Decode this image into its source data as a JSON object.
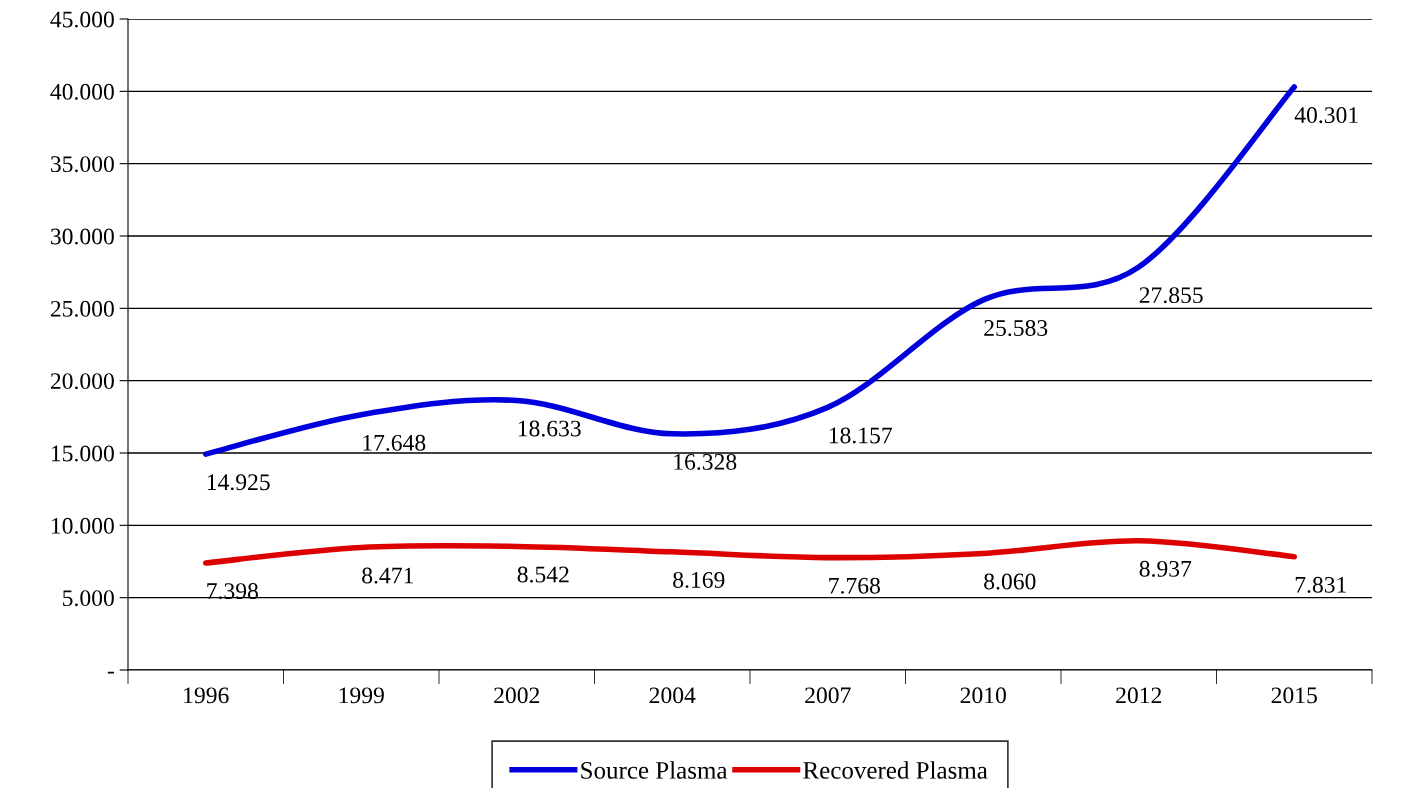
{
  "chart_data": {
    "type": "line",
    "categories": [
      "1996",
      "1999",
      "2002",
      "2004",
      "2007",
      "2010",
      "2012",
      "2015"
    ],
    "series": [
      {
        "name": "Source Plasma",
        "color": "#0000dd",
        "values": [
          14925,
          17648,
          18633,
          16328,
          18157,
          25583,
          27855,
          40301
        ],
        "value_labels": [
          "14.925",
          "17.648",
          "18.633",
          "16.328",
          "18.157",
          "25.583",
          "27.855",
          "40.301"
        ]
      },
      {
        "name": "Recovered Plasma",
        "color": "#dd0000",
        "values": [
          7398,
          8471,
          8542,
          8169,
          7768,
          8060,
          8937,
          7831
        ],
        "value_labels": [
          "7.398",
          "8.471",
          "8.542",
          "8.169",
          "7.768",
          "8.060",
          "8.937",
          "7.831"
        ]
      }
    ],
    "ylim": [
      0,
      45000
    ],
    "yticks": [
      {
        "value": 0,
        "label": "-"
      },
      {
        "value": 5000,
        "label": "5.000"
      },
      {
        "value": 10000,
        "label": "10.000"
      },
      {
        "value": 15000,
        "label": "15.000"
      },
      {
        "value": 20000,
        "label": "20.000"
      },
      {
        "value": 25000,
        "label": "25.000"
      },
      {
        "value": 30000,
        "label": "30.000"
      },
      {
        "value": 35000,
        "label": "35.000"
      },
      {
        "value": 40000,
        "label": "40.000"
      },
      {
        "value": 45000,
        "label": "45.000"
      }
    ],
    "grid": "y",
    "legend": "bottom",
    "marker": "none",
    "line_style": "solid"
  }
}
